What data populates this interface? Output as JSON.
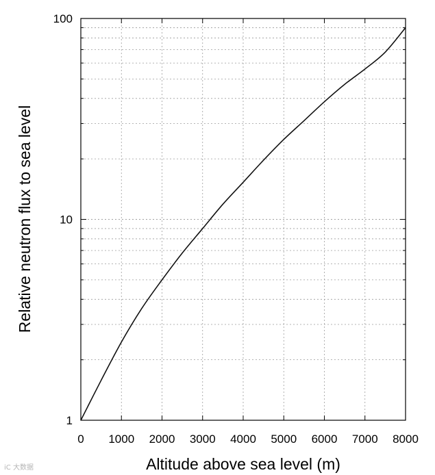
{
  "chart_data": {
    "type": "line",
    "xlabel": "Altitude above sea level (m)",
    "ylabel": "Relative neutron flux to sea level",
    "xlim": [
      0,
      8000
    ],
    "ylim": [
      1,
      100
    ],
    "yscale": "log",
    "grid": true,
    "x_ticks": [
      "0",
      "1000",
      "2000",
      "3000",
      "4000",
      "5000",
      "6000",
      "7000",
      "8000"
    ],
    "y_ticks": [
      "1",
      "10",
      "100"
    ],
    "series": [
      {
        "x": [
          0,
          500,
          1000,
          1500,
          2000,
          2500,
          3000,
          3500,
          4000,
          4500,
          5000,
          5500,
          6000,
          6500,
          7000,
          7500,
          8000
        ],
        "y": [
          1.0,
          1.58,
          2.45,
          3.6,
          5.0,
          6.8,
          9.0,
          11.9,
          15.3,
          19.7,
          25.0,
          31.0,
          38.5,
          47.0,
          56.0,
          68.0,
          90.0
        ],
        "color": "#111111"
      }
    ]
  },
  "watermark": "iC 大数据"
}
